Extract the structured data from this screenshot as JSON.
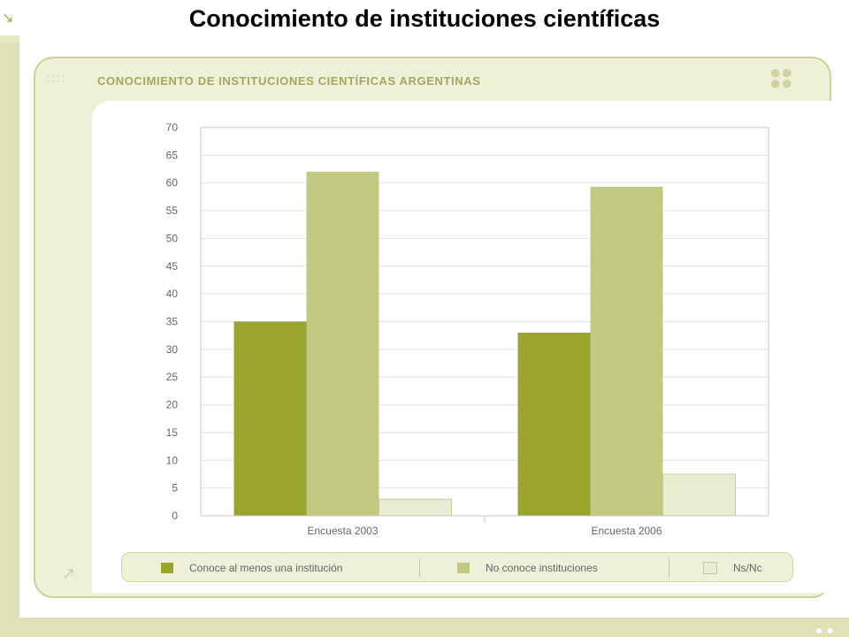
{
  "page": {
    "title": "Conocimiento de instituciones científicas",
    "chart_header": "CONOCIMIENTO DE INSTITUCIONES CIENTÍFICAS ARGENTINAS",
    "colors": {
      "frame": "#eef0d8",
      "band": "#dfe2b4",
      "accent_text": "#a3a860"
    }
  },
  "chart_data": {
    "type": "bar",
    "title": "CONOCIMIENTO DE INSTITUCIONES CIENTÍFICAS ARGENTINAS",
    "xlabel": "",
    "ylabel": "",
    "ylim": [
      0,
      70
    ],
    "yticks": [
      0,
      5,
      10,
      15,
      20,
      25,
      30,
      35,
      40,
      45,
      50,
      55,
      60,
      65,
      70
    ],
    "grid": true,
    "legend_position": "bottom",
    "categories": [
      "Encuesta 2003",
      "Encuesta 2006"
    ],
    "series": [
      {
        "name": "Conoce al menos una institución",
        "color": "#9aa52d",
        "values": [
          35,
          33
        ]
      },
      {
        "name": "No conoce instituciones",
        "color": "#c2c981",
        "values": [
          62,
          59.3
        ]
      },
      {
        "name": "Ns/Nc",
        "color": "#e8ecd2",
        "values": [
          3,
          7.5
        ]
      }
    ]
  }
}
